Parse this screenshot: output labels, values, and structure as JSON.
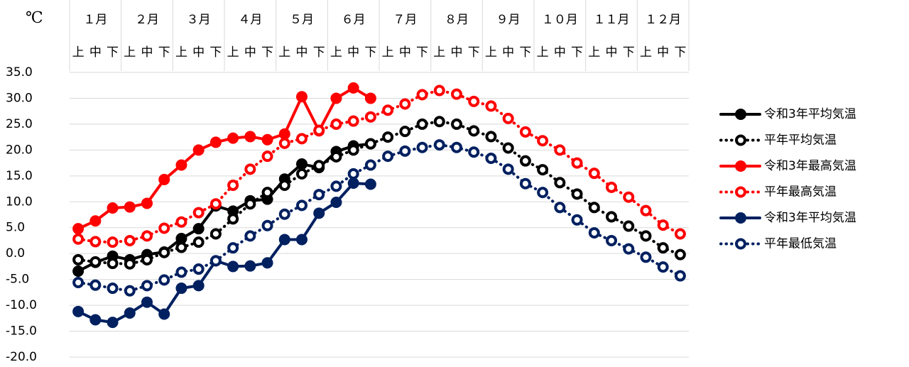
{
  "chart_data": {
    "type": "line",
    "y_unit": "℃",
    "months": [
      "１月",
      "２月",
      "３月",
      "４月",
      "５月",
      "６月",
      "７月",
      "８月",
      "９月",
      "１０月",
      "１１月",
      "１２月"
    ],
    "categories": [
      "上",
      "中",
      "下",
      "上",
      "中",
      "下",
      "上",
      "中",
      "下",
      "上",
      "中",
      "下",
      "上",
      "中",
      "下",
      "上",
      "中",
      "下",
      "上",
      "中",
      "下",
      "上",
      "中",
      "下",
      "上",
      "中",
      "下",
      "上",
      "中",
      "下",
      "上",
      "中",
      "下",
      "上",
      "中",
      "下"
    ],
    "ylim": [
      -20,
      35
    ],
    "yticks": [
      {
        "value": 35,
        "label": "35.0"
      },
      {
        "value": 30,
        "label": "30.0"
      },
      {
        "value": 25,
        "label": "25.0"
      },
      {
        "value": 20,
        "label": "20.0"
      },
      {
        "value": 15,
        "label": "15.0"
      },
      {
        "value": 10,
        "label": "10.0"
      },
      {
        "value": 5,
        "label": "5.0"
      },
      {
        "value": 0,
        "label": "0.0"
      },
      {
        "value": -5,
        "label": "-5.0"
      },
      {
        "value": -10,
        "label": "-10.0"
      },
      {
        "value": -15,
        "label": "-15.0"
      },
      {
        "value": -20,
        "label": "-20.0"
      }
    ],
    "grid": true,
    "legend": "right",
    "series": [
      {
        "name": "令和3年平均気温",
        "color": "#000000",
        "dash": false,
        "marker": "filled",
        "values": [
          -3.4,
          -1.7,
          -0.5,
          -1.2,
          -0.2,
          0.3,
          2.9,
          4.8,
          9.2,
          8.2,
          10.2,
          10.5,
          14.4,
          17.3,
          16.6,
          19.7,
          20.8,
          21.2,
          null,
          null,
          null,
          null,
          null,
          null,
          null,
          null,
          null,
          null,
          null,
          null,
          null,
          null,
          null,
          null,
          null,
          null
        ]
      },
      {
        "name": "平年平均気温",
        "color": "#000000",
        "dash": true,
        "marker": "open",
        "values": [
          -1.2,
          -1.6,
          -1.9,
          -2.0,
          -1.2,
          0.2,
          1.2,
          2.2,
          3.8,
          6.7,
          9.6,
          11.8,
          13.2,
          15.4,
          17.0,
          18.7,
          20.0,
          21.2,
          22.5,
          23.6,
          25.0,
          25.5,
          25.0,
          23.7,
          22.6,
          20.4,
          17.9,
          16.2,
          13.7,
          11.5,
          8.9,
          7.1,
          5.3,
          3.4,
          1.1,
          -0.2
        ]
      },
      {
        "name": "令和3年最高気温",
        "color": "#ff0000",
        "dash": false,
        "marker": "filled",
        "values": [
          4.8,
          6.3,
          8.8,
          9.0,
          9.7,
          14.3,
          17.1,
          20.0,
          21.5,
          22.3,
          22.6,
          22.0,
          23.1,
          30.3,
          23.7,
          30.0,
          32.0,
          30.0,
          null,
          null,
          null,
          null,
          null,
          null,
          null,
          null,
          null,
          null,
          null,
          null,
          null,
          null,
          null,
          null,
          null,
          null
        ]
      },
      {
        "name": "平年最高気温",
        "color": "#ff0000",
        "dash": true,
        "marker": "open",
        "values": [
          2.8,
          2.3,
          2.2,
          2.5,
          3.4,
          4.9,
          6.1,
          7.9,
          9.6,
          13.2,
          16.3,
          18.8,
          21.3,
          22.2,
          23.8,
          25.0,
          25.6,
          26.4,
          27.7,
          28.9,
          30.7,
          31.5,
          30.8,
          29.4,
          28.5,
          26.1,
          23.5,
          21.8,
          20.0,
          17.5,
          15.5,
          12.8,
          10.9,
          8.3,
          5.5,
          3.8
        ]
      },
      {
        "name": "令和3年平均気温",
        "color": "#002060",
        "dash": false,
        "marker": "filled",
        "values": [
          -11.2,
          -12.8,
          -13.3,
          -11.5,
          -9.4,
          -11.7,
          -6.7,
          -6.2,
          -1.4,
          -2.5,
          -2.4,
          -1.8,
          2.7,
          2.7,
          7.8,
          9.9,
          13.6,
          13.4,
          null,
          null,
          null,
          null,
          null,
          null,
          null,
          null,
          null,
          null,
          null,
          null,
          null,
          null,
          null,
          null,
          null,
          null
        ]
      },
      {
        "name": "平年最低気温",
        "color": "#002060",
        "dash": true,
        "marker": "open",
        "values": [
          -5.6,
          -6.1,
          -6.7,
          -7.2,
          -6.2,
          -5.1,
          -3.6,
          -3.0,
          -1.4,
          1.1,
          3.4,
          5.4,
          7.6,
          9.3,
          11.4,
          13.0,
          15.4,
          17.1,
          18.8,
          19.8,
          20.5,
          21.0,
          20.5,
          19.6,
          18.4,
          16.3,
          13.5,
          11.8,
          8.9,
          6.5,
          4.0,
          2.5,
          0.9,
          -0.7,
          -2.6,
          -4.3
        ]
      }
    ]
  }
}
